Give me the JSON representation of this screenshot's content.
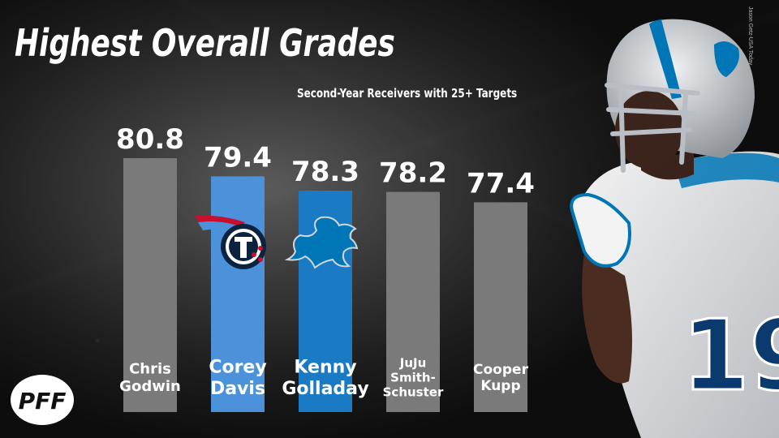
{
  "title": "Highest Overall Grades",
  "subtitle": "Second-Year Receivers with 25+ Targets",
  "credit": "Jason Getz-USA Today",
  "brand": "PFF",
  "colors": {
    "gray_bar": "#7a7a7a",
    "titans_bar": "#4b92db",
    "lions_bar": "#1a7bc4",
    "text": "#ffffff",
    "lions_helmet": "#c9ccd0",
    "lions_blue": "#0076b6",
    "titans_navy": "#0c2340",
    "titans_red": "#c8102e",
    "titans_blue": "#4b92db"
  },
  "chart_data": {
    "type": "bar",
    "title": "Highest Overall Grades",
    "subtitle": "Second-Year Receivers with 25+ Targets",
    "categories": [
      "Chris Godwin",
      "Corey Davis",
      "Kenny Golladay",
      "JuJu Smith-Schuster",
      "Cooper Kupp"
    ],
    "values": [
      80.8,
      79.4,
      78.3,
      78.2,
      77.4
    ],
    "team_logos": [
      "",
      "titans-logo",
      "lions-logo",
      "",
      ""
    ],
    "xlabel": "",
    "ylabel": "",
    "grid": false,
    "legend": "none"
  }
}
